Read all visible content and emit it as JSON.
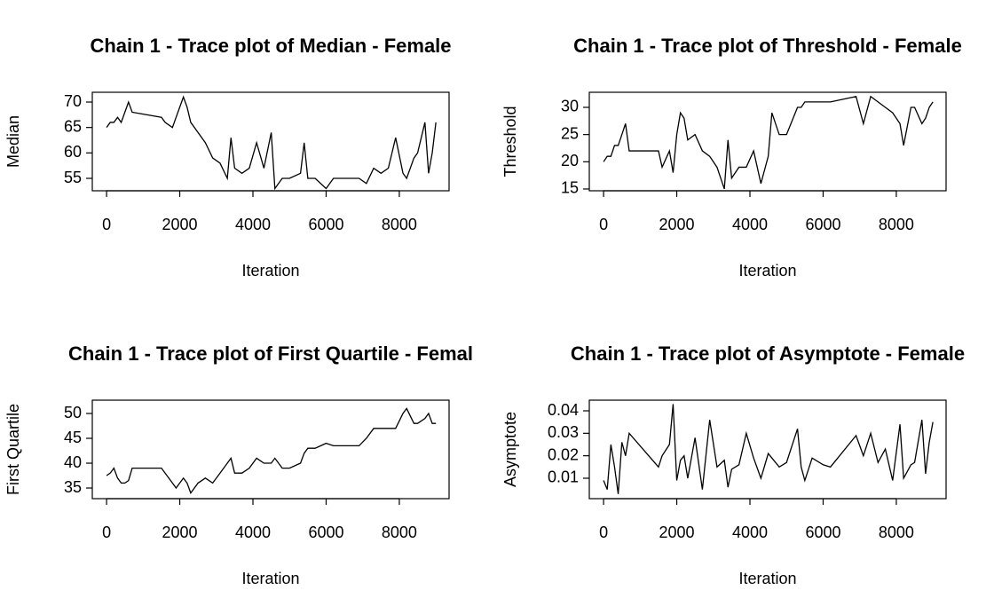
{
  "chart_data": [
    {
      "type": "line",
      "title": "Chain 1 - Trace plot of Median - Female",
      "x_label": "Iteration",
      "y_label": "Median",
      "x": [
        0,
        100,
        200,
        300,
        400,
        500,
        600,
        700,
        1500,
        1600,
        1800,
        1900,
        2000,
        2100,
        2200,
        2300,
        2500,
        2700,
        2900,
        3100,
        3300,
        3400,
        3500,
        3700,
        3900,
        4100,
        4300,
        4500,
        4600,
        4800,
        5000,
        5300,
        5400,
        5500,
        5700,
        6000,
        6200,
        6900,
        7100,
        7300,
        7500,
        7700,
        7900,
        8100,
        8200,
        8400,
        8500,
        8700,
        8800,
        8900,
        9000
      ],
      "values": [
        65,
        66,
        66,
        67,
        66,
        68,
        70,
        68,
        67,
        66,
        65,
        67,
        69,
        71,
        69,
        66,
        64,
        62,
        59,
        58,
        55,
        63,
        57,
        56,
        57,
        62,
        57,
        64,
        53,
        55,
        55,
        56,
        62,
        55,
        55,
        53,
        55,
        55,
        54,
        57,
        56,
        57,
        63,
        56,
        55,
        59,
        60,
        66,
        56,
        60,
        66
      ],
      "color": "#000000",
      "xlim": [
        -390,
        9360
      ],
      "ylim": [
        52.56,
        71.92
      ],
      "xticks": [
        0,
        2000,
        4000,
        6000,
        8000
      ],
      "yticks": [
        55,
        60,
        65,
        70
      ]
    },
    {
      "type": "line",
      "title": "Chain 1 - Trace plot of Threshold - Female",
      "x_label": "Iteration",
      "y_label": "Threshold",
      "x": [
        0,
        100,
        200,
        300,
        400,
        500,
        600,
        700,
        1500,
        1600,
        1800,
        1900,
        2000,
        2100,
        2200,
        2300,
        2500,
        2700,
        2900,
        3100,
        3300,
        3400,
        3500,
        3700,
        3900,
        4100,
        4300,
        4500,
        4600,
        4800,
        5000,
        5300,
        5400,
        5500,
        5700,
        6000,
        6200,
        6900,
        7100,
        7300,
        7500,
        7700,
        7900,
        8100,
        8200,
        8400,
        8500,
        8700,
        8800,
        8900,
        9000
      ],
      "values": [
        20,
        21,
        21,
        23,
        23,
        25,
        27,
        22,
        22,
        19,
        22,
        18,
        25,
        29,
        28,
        24,
        25,
        22,
        21,
        19,
        15,
        24,
        17,
        19,
        19,
        22,
        16,
        21,
        29,
        25,
        25,
        30,
        30,
        31,
        31,
        31,
        31,
        32,
        27,
        32,
        31,
        30,
        29,
        27,
        23,
        30,
        30,
        27,
        28,
        30,
        31
      ],
      "color": "#000000",
      "xlim": [
        -390,
        9360
      ],
      "ylim": [
        14.67,
        32.77
      ],
      "xticks": [
        0,
        2000,
        4000,
        6000,
        8000
      ],
      "yticks": [
        15,
        20,
        25,
        30
      ]
    },
    {
      "type": "line",
      "title": "Chain 1 - Trace plot of First Quartile - Femal",
      "x_label": "Iteration",
      "y_label": "First Quartile",
      "x": [
        0,
        100,
        200,
        300,
        400,
        500,
        600,
        700,
        1500,
        1600,
        1800,
        1900,
        2000,
        2100,
        2200,
        2300,
        2500,
        2700,
        2900,
        3100,
        3300,
        3400,
        3500,
        3700,
        3900,
        4100,
        4300,
        4500,
        4600,
        4800,
        5000,
        5300,
        5400,
        5500,
        5700,
        6000,
        6200,
        6900,
        7100,
        7300,
        7500,
        7700,
        7900,
        8100,
        8200,
        8400,
        8500,
        8700,
        8800,
        8900,
        9000
      ],
      "values": [
        37.5,
        38,
        39,
        37,
        36,
        36,
        36.5,
        39,
        39,
        38,
        36,
        35,
        36,
        37,
        36,
        34,
        36,
        37,
        36,
        38,
        40,
        41,
        38,
        38,
        39,
        41,
        40,
        40,
        41,
        39,
        39,
        40,
        42,
        43,
        43,
        44,
        43.5,
        43.5,
        45,
        47,
        47,
        47,
        47,
        50,
        51,
        48,
        48,
        49,
        50,
        48,
        48
      ],
      "color": "#000000",
      "xlim": [
        -390,
        9360
      ],
      "ylim": [
        32.86,
        52.68
      ],
      "xticks": [
        0,
        2000,
        4000,
        6000,
        8000
      ],
      "yticks": [
        35,
        40,
        45,
        50
      ]
    },
    {
      "type": "line",
      "title": "Chain 1 - Trace plot of Asymptote - Female",
      "x_label": "Iteration",
      "y_label": "Asymptote",
      "x": [
        0,
        100,
        200,
        300,
        400,
        500,
        600,
        700,
        1500,
        1600,
        1800,
        1900,
        2000,
        2100,
        2200,
        2300,
        2500,
        2700,
        2900,
        3100,
        3300,
        3400,
        3500,
        3700,
        3900,
        4100,
        4300,
        4500,
        4600,
        4800,
        5000,
        5300,
        5400,
        5500,
        5700,
        6000,
        6200,
        6900,
        7100,
        7300,
        7500,
        7700,
        7900,
        8100,
        8200,
        8400,
        8500,
        8700,
        8800,
        8900,
        9000
      ],
      "values": [
        0.009,
        0.005,
        0.025,
        0.015,
        0.003,
        0.026,
        0.02,
        0.03,
        0.015,
        0.02,
        0.025,
        0.043,
        0.009,
        0.018,
        0.02,
        0.01,
        0.028,
        0.005,
        0.036,
        0.015,
        0.018,
        0.006,
        0.014,
        0.016,
        0.03,
        0.019,
        0.01,
        0.021,
        0.019,
        0.015,
        0.017,
        0.032,
        0.015,
        0.009,
        0.019,
        0.016,
        0.015,
        0.029,
        0.02,
        0.03,
        0.017,
        0.023,
        0.009,
        0.034,
        0.01,
        0.016,
        0.017,
        0.036,
        0.012,
        0.026,
        0.035
      ],
      "color": "#000000",
      "xlim": [
        -390,
        9360
      ],
      "ylim": [
        0.00092,
        0.04474
      ],
      "xticks": [
        0,
        2000,
        4000,
        6000,
        8000
      ],
      "yticks": [
        0.01,
        0.02,
        0.03,
        0.04
      ]
    }
  ]
}
